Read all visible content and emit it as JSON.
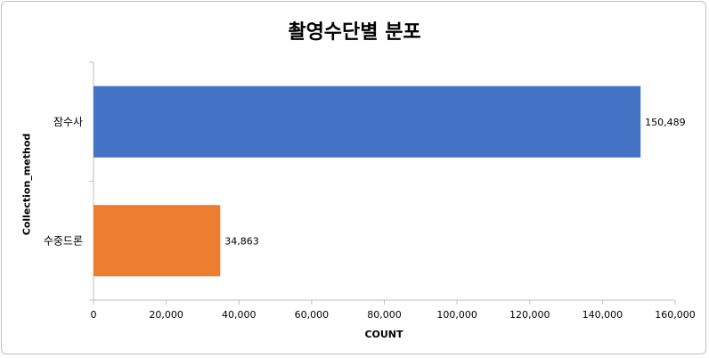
{
  "chart_data": {
    "type": "bar",
    "orientation": "horizontal",
    "title": "촬영수단별 분포",
    "xlabel": "COUNT",
    "ylabel": "Collection_method",
    "categories": [
      "잠수사",
      "수중드론"
    ],
    "values": [
      150489,
      34863
    ],
    "value_labels": [
      "150,489",
      "34,863"
    ],
    "colors": [
      "#4472C4",
      "#ED7D31"
    ],
    "xlim": [
      0,
      160000
    ],
    "xticks": [
      0,
      20000,
      40000,
      60000,
      80000,
      100000,
      120000,
      140000,
      160000
    ],
    "xtick_labels": [
      "0",
      "20,000",
      "40,000",
      "60,000",
      "80,000",
      "100,000",
      "120,000",
      "140,000",
      "160,000"
    ],
    "grid": false,
    "legend": "none"
  }
}
